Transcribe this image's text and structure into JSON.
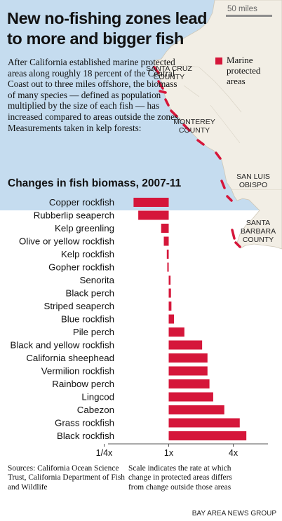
{
  "title": "New no-fishing zones lead to more and bigger fish",
  "intro": "After California established marine protected areas along roughly 18 percent of the Central Coast out to three miles offshore, the biomass of many species — defined as population multiplied by the size of each fish — has increased compared to areas outside the zones. Measurements taken in kelp forests:",
  "map": {
    "scale_label": "50 miles",
    "legend_label": "Marine protected areas",
    "counties": [
      "SANTA CRUZ COUNTY",
      "MONTEREY COUNTY",
      "SAN LUIS OBISPO COUNTY",
      "SANTA BARBARA COUNTY"
    ],
    "colors": {
      "ocean": "#c5dcef",
      "land": "#f2eee5",
      "mpa": "#d5163a"
    }
  },
  "chart_data": {
    "type": "bar",
    "orientation": "horizontal",
    "title": "Changes in fish biomass, 2007-11",
    "scale": "log2",
    "xlim": [
      0.25,
      5.5
    ],
    "x_ticks": [
      {
        "value": 0.25,
        "label": "1/4x"
      },
      {
        "value": 1,
        "label": "1x"
      },
      {
        "value": 4,
        "label": "4x"
      }
    ],
    "categories": [
      "Copper rockfish",
      "Rubberlip seaperch",
      "Kelp greenling",
      "Olive or yellow rockfish",
      "Kelp rockfish",
      "Gopher rockfish",
      "Senorita",
      "Black perch",
      "Striped seaperch",
      "Blue rockfish",
      "Pile perch",
      "Black and yellow rockfish",
      "California sheephead",
      "Vermilion rockfish",
      "Rainbow perch",
      "Lingcod",
      "Cabezon",
      "Grass rockfish",
      "Black rockfish"
    ],
    "values": [
      0.47,
      0.52,
      0.85,
      0.9,
      0.96,
      0.97,
      1.04,
      1.05,
      1.06,
      1.12,
      1.4,
      2.05,
      2.3,
      2.3,
      2.4,
      2.6,
      3.3,
      4.6,
      5.3
    ],
    "bar_color": "#d5163a"
  },
  "sources": "Sources: California Ocean Science Trust, California Department of Fish and Wildlife",
  "note": "Scale indicates the rate at which change in protected areas differs from change outside those areas",
  "credit": "BAY AREA NEWS GROUP"
}
